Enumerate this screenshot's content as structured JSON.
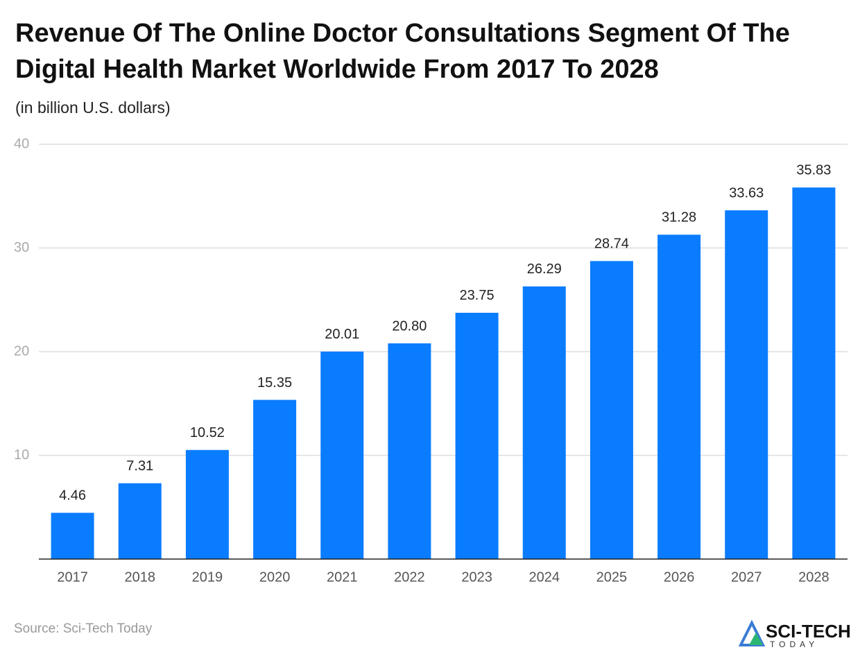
{
  "chart_data": {
    "type": "bar",
    "title": "Revenue Of The Online Doctor Consultations Segment Of The Digital Health Market Worldwide From 2017 To 2028",
    "subtitle": "(in billion U.S. dollars)",
    "categories": [
      "2017",
      "2018",
      "2019",
      "2020",
      "2021",
      "2022",
      "2023",
      "2024",
      "2025",
      "2026",
      "2027",
      "2028"
    ],
    "values": [
      4.46,
      7.31,
      10.52,
      15.35,
      20.01,
      20.8,
      23.75,
      26.29,
      28.74,
      31.28,
      33.63,
      35.83
    ],
    "value_labels": [
      "4.46",
      "7.31",
      "10.52",
      "15.35",
      "20.01",
      "20.80",
      "23.75",
      "26.29",
      "28.74",
      "31.28",
      "33.63",
      "35.83"
    ],
    "color": "#0a7cff",
    "ylim": [
      0,
      40
    ],
    "yticks": [
      10,
      20,
      30,
      40
    ],
    "grid": true,
    "source": "Source: Sci-Tech Today",
    "logo": [
      "SCI-TECH",
      "TODAY"
    ]
  }
}
